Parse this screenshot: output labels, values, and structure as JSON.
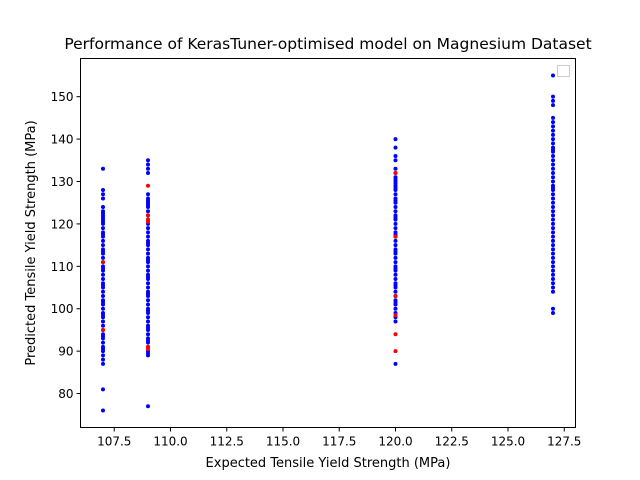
{
  "chart_data": {
    "type": "scatter",
    "title": "Performance of KerasTuner-optimised model on Magnesium Dataset",
    "xlabel": "Expected Tensile Yield Strength (MPa)",
    "ylabel": "Predicted Tensile Yield Strength (MPa)",
    "xlim": [
      106.0,
      128.0
    ],
    "ylim": [
      72.0,
      159.0
    ],
    "xticks": [
      107.5,
      110.0,
      112.5,
      115.0,
      117.5,
      120.0,
      122.5,
      125.0,
      127.5
    ],
    "xtick_labels": [
      "107.5",
      "110.0",
      "112.5",
      "115.0",
      "117.5",
      "120.0",
      "122.5",
      "125.0",
      "127.5"
    ],
    "yticks": [
      80,
      90,
      100,
      110,
      120,
      130,
      140,
      150
    ],
    "ytick_labels": [
      "80",
      "90",
      "100",
      "110",
      "120",
      "130",
      "140",
      "150"
    ],
    "grid": false,
    "legend": {
      "position": "top-right",
      "entries": []
    },
    "colors": {
      "primary": "#0000ff",
      "secondary": "#ff0000"
    },
    "series": [
      {
        "color": "#0000ff",
        "x": [
          107,
          107,
          107,
          107,
          107,
          107,
          107,
          107,
          107,
          107,
          107,
          107,
          107,
          107,
          107,
          107,
          107,
          107,
          107,
          107,
          107,
          107,
          107,
          107,
          107,
          107,
          107,
          107,
          107,
          107,
          107,
          107,
          107,
          107,
          107,
          107,
          107,
          107,
          107,
          107,
          107,
          107,
          107,
          107,
          107,
          107,
          107,
          107,
          107,
          107,
          107,
          107,
          107,
          107,
          107,
          109,
          109,
          109,
          109,
          109,
          109,
          109,
          109,
          109,
          109,
          109,
          109,
          109,
          109,
          109,
          109,
          109,
          109,
          109,
          109,
          109,
          109,
          109,
          109,
          109,
          109,
          109,
          109,
          109,
          109,
          109,
          109,
          109,
          109,
          109,
          109,
          109,
          109,
          109,
          109,
          109,
          109,
          109,
          109,
          109,
          109,
          109,
          109,
          109,
          109,
          109,
          109,
          109,
          109,
          120,
          120,
          120,
          120,
          120,
          120,
          120,
          120,
          120,
          120,
          120,
          120,
          120,
          120,
          120,
          120,
          120,
          120,
          120,
          120,
          120,
          120,
          120,
          120,
          120,
          120,
          120,
          120,
          120,
          120,
          120,
          120,
          120,
          120,
          120,
          120,
          120,
          120,
          120,
          120,
          120,
          120,
          120,
          120,
          120,
          120,
          120,
          120,
          120,
          120,
          120,
          120,
          127,
          127,
          127,
          127,
          127,
          127,
          127,
          127,
          127,
          127,
          127,
          127,
          127,
          127,
          127,
          127,
          127,
          127,
          127,
          127,
          127,
          127,
          127,
          127,
          127,
          127,
          127,
          127,
          127,
          127,
          127,
          127,
          127,
          127,
          127,
          127,
          127,
          127,
          127,
          127,
          127,
          127,
          127,
          127,
          127,
          127,
          127,
          127,
          127
        ],
        "y": [
          76,
          81,
          87,
          88,
          89,
          90,
          90.5,
          91,
          92,
          93,
          93.5,
          94,
          95,
          96,
          97,
          98,
          98.5,
          99,
          100,
          101,
          101.5,
          102,
          103,
          104,
          105,
          105.5,
          106,
          107,
          108,
          109,
          109.5,
          110,
          111,
          112,
          113,
          113.5,
          114,
          115,
          116,
          117,
          117.5,
          118,
          119,
          120,
          120.5,
          121,
          121.5,
          122,
          122.5,
          123,
          124,
          126,
          127,
          128,
          133,
          77,
          89,
          89.5,
          90,
          91,
          92,
          92.5,
          93,
          94,
          95,
          95.5,
          96,
          97,
          98,
          99,
          99.5,
          100,
          101,
          102,
          103,
          103.5,
          104,
          105,
          106,
          107,
          107.5,
          108,
          109,
          110,
          111,
          111.5,
          112,
          113,
          114,
          115,
          115.5,
          116,
          117,
          118,
          119,
          120,
          121,
          122,
          123,
          124,
          124.5,
          125,
          125.5,
          126,
          127,
          132,
          133,
          134,
          135,
          87,
          97,
          98,
          99,
          100,
          101,
          101.5,
          102,
          103,
          104,
          105,
          105.5,
          106,
          107,
          108,
          109,
          109.5,
          110,
          111,
          112,
          113,
          113.5,
          114,
          115,
          116,
          117,
          117.5,
          118,
          119,
          120,
          121,
          121.5,
          122,
          123,
          124,
          125,
          125.5,
          126,
          127,
          128,
          128.5,
          129,
          129.5,
          130,
          130.5,
          131,
          132,
          133,
          135,
          136,
          138,
          140,
          99,
          100,
          104,
          105,
          106,
          107,
          108,
          109,
          110,
          111,
          112,
          113,
          114,
          115,
          116,
          117,
          118,
          119,
          120,
          121,
          122,
          123,
          124,
          125,
          126,
          127,
          128,
          128.5,
          129,
          130,
          131,
          132,
          133,
          134,
          135,
          136,
          137,
          137.5,
          138,
          139,
          140,
          141,
          142,
          143,
          144,
          145,
          148,
          149,
          150
        ]
      },
      {
        "color": "#ff0000",
        "x": [
          107,
          107,
          109,
          109,
          109,
          109,
          109,
          109,
          120,
          120,
          120,
          120,
          120,
          120
        ],
        "y": [
          95,
          111,
          90.5,
          91,
          120.5,
          121,
          122,
          129,
          90,
          94,
          98.5,
          103,
          117,
          132
        ]
      },
      {
        "color": "#0000ff",
        "x": [
          127
        ],
        "y": [
          155
        ]
      }
    ]
  }
}
